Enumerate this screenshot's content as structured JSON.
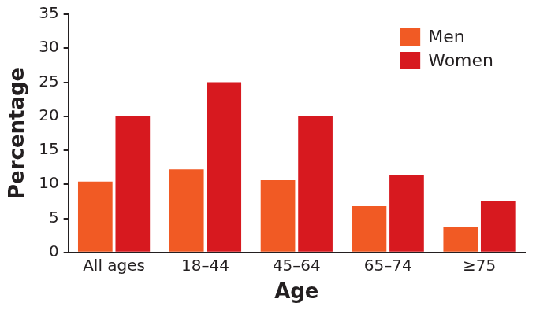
{
  "chart_data": {
    "type": "bar",
    "x_label": "Age",
    "y_label": "Percentage",
    "categories": [
      "All ages",
      "18–44",
      "45–64",
      "65–74",
      "≥75"
    ],
    "series": [
      {
        "name": "Men",
        "color": "#f15a24",
        "values": [
          10.4,
          12.2,
          10.6,
          6.8,
          3.8
        ]
      },
      {
        "name": "Women",
        "color": "#d7191f",
        "values": [
          20.0,
          25.0,
          20.1,
          11.3,
          7.5
        ]
      }
    ],
    "ylim": [
      0,
      35
    ],
    "yticks": [
      0,
      5,
      10,
      15,
      20,
      25,
      30,
      35
    ],
    "grid": false,
    "legend": "upper right"
  }
}
